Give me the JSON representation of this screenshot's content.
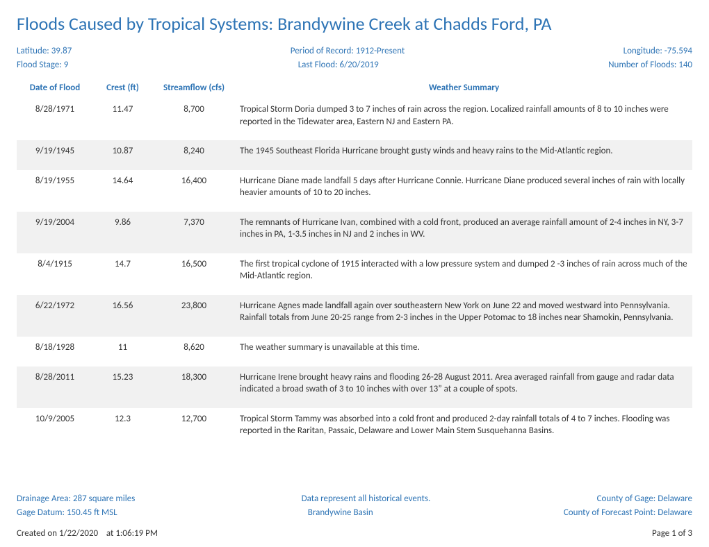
{
  "title": "Floods Caused by Tropical Systems: Brandywine Creek at Chadds Ford, PA",
  "meta": {
    "row1": {
      "left": "Latitude: 39.87",
      "center": "Period of Record: 1912-Present",
      "right": "Longitude: -75.594"
    },
    "row2": {
      "left": "Flood Stage: 9",
      "center": "Last Flood: 6/20/2019",
      "right": "Number of Floods: 140"
    }
  },
  "columns": {
    "date": "Date of Flood",
    "crest": "Crest (ft)",
    "flow": "Streamflow (cfs)",
    "summary": "Weather Summary"
  },
  "rows": [
    {
      "date": "8/28/1971",
      "crest": "11.47",
      "flow": "8,700",
      "summary": "Tropical Storm Doria dumped 3 to 7 inches of rain across the region. Localized rainfall amounts of 8 to 10 inches were reported in the Tidewater area, Eastern NJ and Eastern PA."
    },
    {
      "date": "9/19/1945",
      "crest": "10.87",
      "flow": "8,240",
      "summary": "The 1945 Southeast Florida Hurricane brought gusty winds and heavy rains to the Mid-Atlantic region."
    },
    {
      "date": "8/19/1955",
      "crest": "14.64",
      "flow": "16,400",
      "summary": "Hurricane Diane made landfall 5 days after Hurricane Connie. Hurricane Diane produced several inches of rain with locally heavier amounts of 10 to 20 inches."
    },
    {
      "date": "9/19/2004",
      "crest": "9.86",
      "flow": "7,370",
      "summary": "The remnants of Hurricane Ivan, combined with a cold front, produced an average rainfall amount of 2-4 inches in NY, 3-7 inches in PA, 1-3.5 inches in NJ and 2 inches in WV."
    },
    {
      "date": "8/4/1915",
      "crest": "14.7",
      "flow": "16,500",
      "summary": "The first tropical cyclone of 1915 interacted with a low pressure system and dumped 2 -3 inches of rain across much of the Mid-Atlantic region."
    },
    {
      "date": "6/22/1972",
      "crest": "16.56",
      "flow": "23,800",
      "summary": "Hurricane Agnes made landfall again over southeastern New York on June 22 and moved westward into Pennsylvania.  Rainfall totals from June 20-25 range from 2-3 inches in the Upper Potomac to 18 inches near Shamokin, Pennsylvania."
    },
    {
      "date": "8/18/1928",
      "crest": "11",
      "flow": "8,620",
      "summary": "The weather summary is unavailable at this time."
    },
    {
      "date": "8/28/2011",
      "crest": "15.23",
      "flow": "18,300",
      "summary": "Hurricane Irene brought heavy rains and flooding 26-28 August 2011. Area averaged rainfall from gauge and radar data indicated a broad swath of 3 to 10 inches with over 13” at a couple of spots."
    },
    {
      "date": "10/9/2005",
      "crest": "12.3",
      "flow": "12,700",
      "summary": "Tropical Storm Tammy was absorbed into a cold front and produced 2-day rainfall totals of 4 to 7 inches. Flooding was reported in the Raritan, Passaic, Delaware and Lower Main Stem Susquehanna Basins."
    }
  ],
  "footer_meta": {
    "row1": {
      "left": "Drainage Area: 287 square miles",
      "center": "Data represent all historical events.",
      "right": "County of Gage: Delaware"
    },
    "row2": {
      "left": "Gage Datum: 150.45 ft MSL",
      "center": "Brandywine Basin",
      "right": "County of Forecast Point: Delaware"
    }
  },
  "page_footer": {
    "created_label": "Created on",
    "created_date": "1/22/2020",
    "created_at_label": "at",
    "created_time": "1:06:19 PM",
    "page": "Page 1 of 3"
  }
}
